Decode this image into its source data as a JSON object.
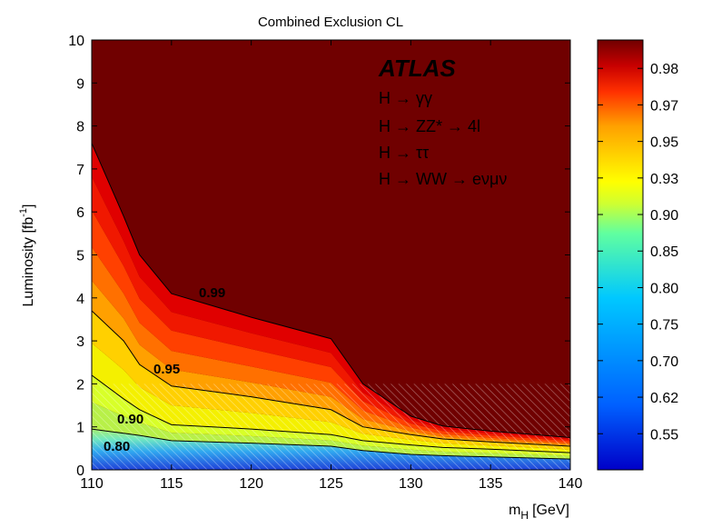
{
  "chart_data": {
    "type": "heatmap",
    "title": "Combined Exclusion CL",
    "xlabel": "m",
    "xlabel_sub": "H",
    "xlabel_unit": "[GeV]",
    "ylabel": "Luminosity [fb",
    "ylabel_sup": "-1",
    "ylabel_close": "]",
    "xlim": [
      110,
      140
    ],
    "ylim": [
      0,
      10
    ],
    "x_ticks": [
      "110",
      "115",
      "120",
      "125",
      "130",
      "135",
      "140"
    ],
    "y_ticks": [
      "0",
      "1",
      "2",
      "3",
      "4",
      "5",
      "6",
      "7",
      "8",
      "9",
      "10"
    ],
    "colorbar": {
      "range": [
        0.5,
        1.0
      ],
      "tick_values": [
        0.55,
        0.62,
        0.7,
        0.75,
        0.8,
        0.85,
        0.9,
        0.93,
        0.95,
        0.97,
        0.98
      ],
      "tick_labels": [
        "0.55",
        "0.62",
        "0.70",
        "0.75",
        "0.80",
        "0.85",
        "0.90",
        "0.93",
        "0.95",
        "0.97",
        "0.98"
      ]
    },
    "mass_points": [
      110,
      112,
      113,
      115,
      120,
      125,
      127,
      130,
      132,
      135,
      140
    ],
    "contours": [
      {
        "level": "0.80",
        "label": "0.80",
        "lumi": [
          0.95,
          0.85,
          0.8,
          0.68,
          0.62,
          0.55,
          0.45,
          0.36,
          0.33,
          0.3,
          0.25
        ]
      },
      {
        "level": "0.90",
        "label": "0.90",
        "lumi": [
          2.2,
          1.65,
          1.4,
          1.05,
          0.95,
          0.82,
          0.68,
          0.58,
          0.52,
          0.48,
          0.4
        ]
      },
      {
        "level": "0.95",
        "label": "0.95",
        "lumi": [
          3.7,
          3.0,
          2.45,
          1.95,
          1.7,
          1.4,
          1.0,
          0.82,
          0.72,
          0.65,
          0.55
        ]
      },
      {
        "level": "0.99",
        "label": "0.99",
        "lumi": [
          7.6,
          5.9,
          5.0,
          4.1,
          3.55,
          3.05,
          2.0,
          1.25,
          1.02,
          0.9,
          0.75
        ]
      }
    ],
    "hatched_region_below_lumi": 2.0,
    "channels": [
      "H → γγ",
      "H → ZZ* → 4l",
      "H → ττ",
      "H → WW → eνμν"
    ],
    "experiment": "ATLAS"
  },
  "colors": {
    "saturated": "#700000",
    "stops": [
      "#0000c8",
      "#0060ff",
      "#00c8ff",
      "#60ffa0",
      "#d0ff30",
      "#ffff00",
      "#ffa000",
      "#ff3000",
      "#c80000",
      "#700000"
    ]
  }
}
